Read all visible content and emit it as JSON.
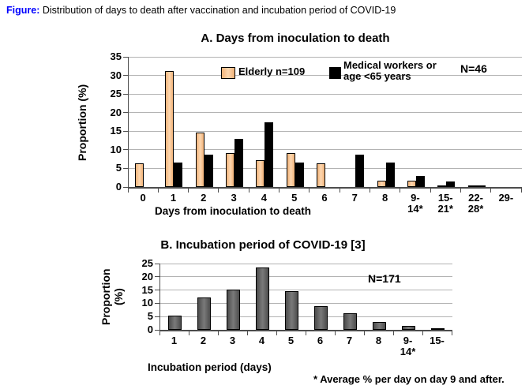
{
  "caption": {
    "prefix": "Figure:",
    "text": " Distribution of days to death after vaccination and incubation period of COVID-19"
  },
  "colors": {
    "caption_prefix": "#0000ff",
    "elderly_bar": "#FAC090",
    "medical_bar": "#000000",
    "incubation_bar": "#595959",
    "gridline": "#b3b3b3",
    "axis": "#4d4d4d"
  },
  "footnote": "* Average % per day on day 9 and after.",
  "chart_data": [
    {
      "type": "bar",
      "title": "A. Days from inoculation to death",
      "n_label": "N=46",
      "ylabel": "Proportion (%)",
      "xlabel": "Days from inoculation to death",
      "ylim": [
        0,
        35
      ],
      "ytick_step": 5,
      "grid": true,
      "legend_position": "top-inside",
      "categories": [
        "0",
        "1",
        "2",
        "3",
        "4",
        "5",
        "6",
        "7",
        "8",
        "9-|14*",
        "15-|21*",
        "22-|28*",
        "29-"
      ],
      "series": [
        {
          "name": "Elderly  n=109",
          "color": "#FAC090",
          "values": [
            6.4,
            31.2,
            14.7,
            9.2,
            7.3,
            9.2,
            6.4,
            0,
            1.8,
            1.8,
            0.5,
            0.4,
            0
          ]
        },
        {
          "name": "Medical workers or age <65 years",
          "color": "#000000",
          "values": [
            0,
            6.5,
            8.7,
            13.0,
            17.4,
            6.5,
            0,
            8.7,
            6.5,
            2.9,
            1.5,
            0.5,
            0
          ]
        }
      ],
      "legend": {
        "elderly": "Elderly  n=109",
        "medical_line1": "Medical workers or",
        "medical_line2": "age  <65 years"
      }
    },
    {
      "type": "bar",
      "title": "B. Incubation period of COVID-19 [3]",
      "n_label": "N=171",
      "ylabel": "Proportion (%)",
      "xlabel": "Incubation period (days)",
      "ylim": [
        0,
        25
      ],
      "ytick_step": 5,
      "grid": true,
      "categories": [
        "1",
        "2",
        "3",
        "4",
        "5",
        "6",
        "7",
        "8",
        "9-|14*",
        "15-"
      ],
      "series": [
        {
          "name": "Incubation period of COVID-19",
          "color": "#595959",
          "values": [
            5.3,
            12.3,
            15.2,
            23.4,
            14.6,
            8.8,
            6.4,
            2.9,
            1.5,
            0.5
          ]
        }
      ]
    }
  ]
}
